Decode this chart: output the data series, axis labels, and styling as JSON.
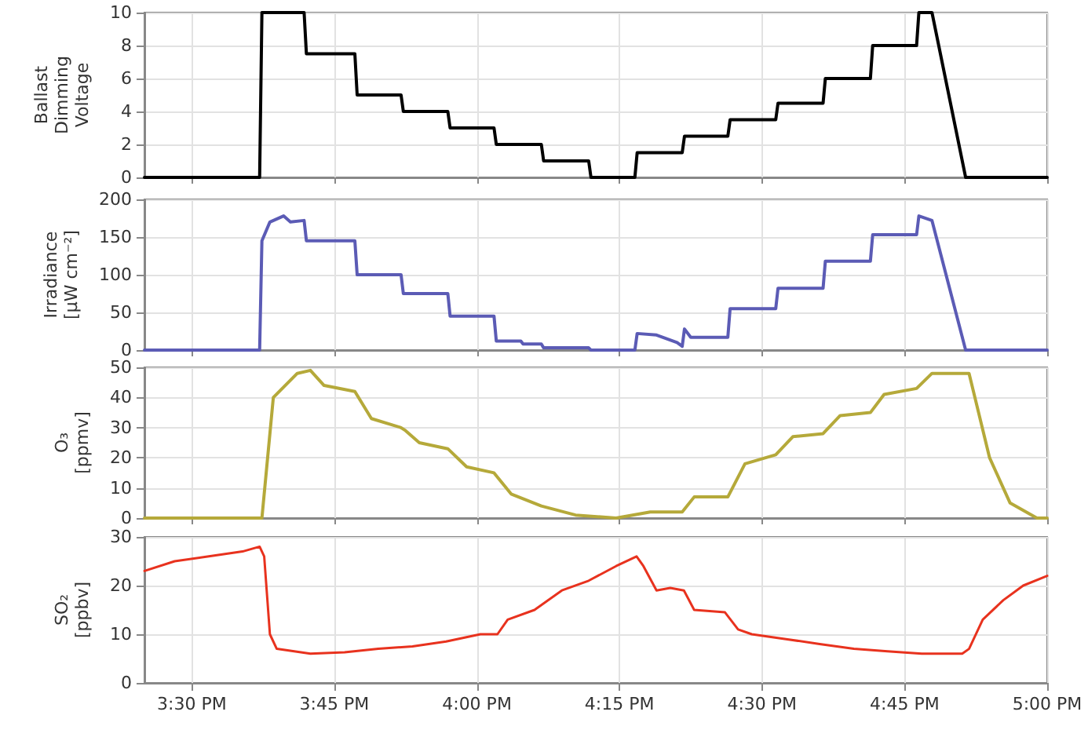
{
  "chart_data": [
    {
      "type": "line",
      "ylabel": "Ballast Dimming Voltage",
      "xlim": [
        15.417,
        17.0
      ],
      "xticks": [
        {
          "value": 15.5,
          "label": null
        },
        {
          "value": 15.75,
          "label": null
        },
        {
          "value": 16,
          "label": null
        },
        {
          "value": 16.25,
          "label": null
        },
        {
          "value": 16.5,
          "label": null
        },
        {
          "value": 16.75,
          "label": null
        },
        {
          "value": 17,
          "label": null
        }
      ],
      "ylim": [
        0,
        10
      ],
      "yticks": [
        0,
        2,
        4,
        6,
        8,
        10
      ],
      "grid": true,
      "tick_labels": "y",
      "marker": "none",
      "series": [
        {
          "color": "#000000",
          "x": [
            15.417,
            15.619,
            15.623,
            15.697,
            15.701,
            15.786,
            15.79,
            15.867,
            15.871,
            15.949,
            15.953,
            16.03,
            16.034,
            16.113,
            16.117,
            16.196,
            16.2,
            16.277,
            16.281,
            16.36,
            16.364,
            16.44,
            16.444,
            16.524,
            16.528,
            16.607,
            16.611,
            16.69,
            16.694,
            16.771,
            16.775,
            16.798,
            16.857,
            17.0
          ],
          "values": [
            0,
            0,
            10,
            10,
            7.5,
            7.5,
            5,
            5,
            4,
            4,
            3,
            3,
            2,
            2,
            1,
            1,
            0,
            0,
            1.5,
            1.5,
            2.5,
            2.5,
            3.5,
            3.5,
            4.5,
            4.5,
            6,
            6,
            8,
            8,
            10,
            10,
            0,
            0
          ]
        }
      ]
    },
    {
      "type": "line",
      "ylabel": "Irradiance [μW cm⁻²]",
      "xlim": [
        15.417,
        17.0
      ],
      "xticks": [
        {
          "value": 15.5,
          "label": null
        },
        {
          "value": 15.75,
          "label": null
        },
        {
          "value": 16,
          "label": null
        },
        {
          "value": 16.25,
          "label": null
        },
        {
          "value": 16.5,
          "label": null
        },
        {
          "value": 16.75,
          "label": null
        },
        {
          "value": 17,
          "label": null
        }
      ],
      "ylim": [
        0,
        200
      ],
      "yticks": [
        0,
        50,
        100,
        150,
        200
      ],
      "grid": true,
      "tick_labels": "y",
      "marker": "none",
      "series": [
        {
          "color": "#5b5bb5",
          "x": [
            15.417,
            15.619,
            15.623,
            15.637,
            15.661,
            15.673,
            15.697,
            15.701,
            15.786,
            15.79,
            15.867,
            15.871,
            15.949,
            15.953,
            16.03,
            16.034,
            16.077,
            16.081,
            16.113,
            16.117,
            16.196,
            16.2,
            16.277,
            16.281,
            16.315,
            16.351,
            16.36,
            16.364,
            16.375,
            16.44,
            16.444,
            16.524,
            16.528,
            16.607,
            16.611,
            16.69,
            16.694,
            16.771,
            16.775,
            16.798,
            16.857,
            17.0
          ],
          "values": [
            0,
            0,
            145,
            170,
            178,
            170,
            172,
            145,
            145,
            100,
            100,
            75,
            75,
            45,
            45,
            12,
            12,
            8,
            8,
            3,
            3,
            0,
            0,
            22,
            20,
            10,
            5,
            28,
            17,
            17,
            55,
            55,
            82,
            82,
            118,
            118,
            153,
            153,
            178,
            172,
            0,
            0
          ]
        }
      ]
    },
    {
      "type": "line",
      "ylabel": "O₃ [ppmv]",
      "xlim": [
        15.417,
        17.0
      ],
      "xticks": [
        {
          "value": 15.5,
          "label": null
        },
        {
          "value": 15.75,
          "label": null
        },
        {
          "value": 16,
          "label": null
        },
        {
          "value": 16.25,
          "label": null
        },
        {
          "value": 16.5,
          "label": null
        },
        {
          "value": 16.75,
          "label": null
        },
        {
          "value": 17,
          "label": null
        }
      ],
      "ylim": [
        0,
        50
      ],
      "yticks": [
        0,
        10,
        20,
        30,
        40,
        50
      ],
      "grid": true,
      "tick_labels": "y",
      "marker": "none",
      "series": [
        {
          "color": "#b5a93a",
          "x": [
            15.417,
            15.623,
            15.643,
            15.685,
            15.708,
            15.732,
            15.786,
            15.815,
            15.867,
            15.875,
            15.899,
            15.949,
            15.982,
            16.03,
            16.06,
            16.113,
            16.173,
            16.244,
            16.304,
            16.36,
            16.381,
            16.44,
            16.47,
            16.524,
            16.554,
            16.607,
            16.637,
            16.69,
            16.714,
            16.771,
            16.798,
            16.863,
            16.899,
            16.935,
            16.982,
            17.0
          ],
          "values": [
            0,
            0,
            40,
            48,
            49,
            44,
            42,
            33,
            30,
            29,
            25,
            23,
            17,
            15,
            8,
            4,
            1,
            0,
            2,
            2,
            7,
            7,
            18,
            21,
            27,
            28,
            34,
            35,
            41,
            43,
            48,
            48,
            20,
            5,
            0,
            0
          ]
        }
      ]
    },
    {
      "type": "line",
      "ylabel": "SO₂ [ppbv]",
      "xlim": [
        15.417,
        17.0
      ],
      "xticks": [
        {
          "value": 15.5,
          "label": "3:30 PM"
        },
        {
          "value": 15.75,
          "label": "3:45 PM"
        },
        {
          "value": 16,
          "label": "4:00 PM"
        },
        {
          "value": 16.25,
          "label": "4:15 PM"
        },
        {
          "value": 16.5,
          "label": "4:30 PM"
        },
        {
          "value": 16.75,
          "label": "4:45 PM"
        },
        {
          "value": 17,
          "label": "5:00 PM"
        }
      ],
      "ylim": [
        0,
        30
      ],
      "yticks": [
        0,
        10,
        20,
        30
      ],
      "grid": true,
      "marker": "none",
      "series": [
        {
          "color": "#e8321e",
          "x": [
            15.417,
            15.47,
            15.53,
            15.589,
            15.619,
            15.627,
            15.637,
            15.649,
            15.708,
            15.768,
            15.827,
            15.887,
            15.946,
            16.006,
            16.036,
            16.054,
            16.101,
            16.149,
            16.196,
            16.244,
            16.28,
            16.292,
            16.315,
            16.339,
            16.363,
            16.381,
            16.435,
            16.458,
            16.482,
            16.542,
            16.601,
            16.661,
            16.72,
            16.78,
            16.851,
            16.863,
            16.887,
            16.923,
            16.958,
            17.0
          ],
          "values": [
            23,
            25,
            26,
            27,
            28,
            26,
            10,
            7,
            6,
            6.3,
            7,
            7.5,
            8.5,
            10,
            10,
            13,
            15,
            19,
            21,
            24,
            26,
            24,
            19,
            19.5,
            19,
            15,
            14.5,
            11,
            10,
            9,
            8,
            7,
            6.5,
            6,
            6,
            7,
            13,
            17,
            20,
            22
          ]
        }
      ]
    }
  ]
}
